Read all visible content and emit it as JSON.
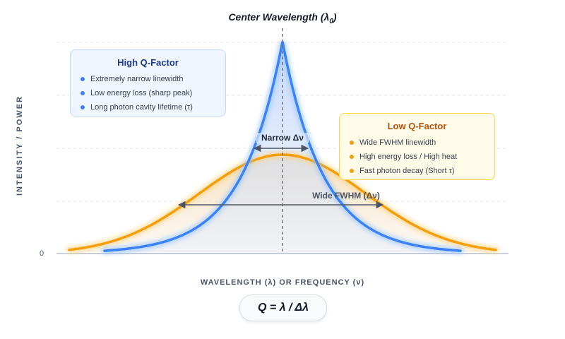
{
  "title": "Center Wavelength (λ",
  "title_sub": "0",
  "title_close": ")",
  "y_axis_label": "INTENSITY / POWER",
  "y_zero_tick": "0",
  "x_axis_label": "WAVELENGTH (λ) OR FREQUENCY (ν)",
  "formula": "Q = λ / Δλ",
  "high_q": {
    "title": "High Q-Factor",
    "items": [
      "Extremely narrow linewidth",
      "Low energy loss (sharp peak)",
      "Long photon cavity lifetime (τ)"
    ]
  },
  "low_q": {
    "title": "Low Q-Factor",
    "items": [
      "Wide FWHM linewidth",
      "High energy loss / High heat",
      "Fast photon decay (Short τ)"
    ]
  },
  "narrow_label": "Narrow Δν",
  "wide_label": "Wide FWHM (Δν)",
  "colors": {
    "high_q": "#3b82f6",
    "low_q": "#f59e0b",
    "axis": "#94a3b8",
    "arrow": "#4b5563"
  }
}
